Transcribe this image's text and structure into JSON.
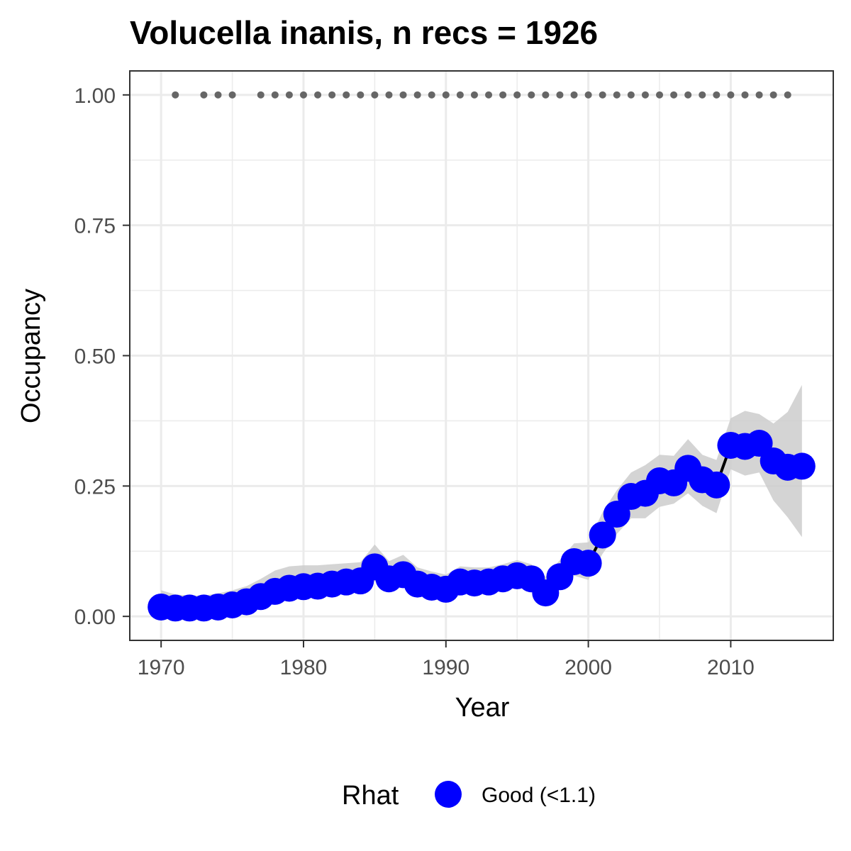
{
  "chart_data": {
    "type": "line",
    "title": "Volucella inanis, n recs = 1926",
    "xlabel": "Year",
    "ylabel": "Occupancy",
    "xlim": [
      1967.8,
      2017.2
    ],
    "ylim": [
      -0.046,
      1.046
    ],
    "x_ticks": [
      1970,
      1980,
      1990,
      2000,
      2010
    ],
    "x_tick_labels": [
      "1970",
      "1980",
      "1990",
      "2000",
      "2010"
    ],
    "y_ticks": [
      0,
      0.25,
      0.5,
      0.75,
      1
    ],
    "y_tick_labels": [
      "0.00",
      "0.25",
      "0.50",
      "0.75",
      "1.00"
    ],
    "grid": true,
    "legend": {
      "position": "bottom",
      "title": "Rhat",
      "entries": [
        {
          "label": "Good (<1.1)",
          "color": "#0000ff"
        }
      ]
    },
    "colors": {
      "points": "#0000ff",
      "line": "#000000",
      "ribbon": "#cccccc",
      "record_dots": "#666666"
    },
    "series": [
      {
        "x": [
          1970,
          1971,
          1972,
          1973,
          1974,
          1975,
          1976,
          1977,
          1978,
          1979,
          1980,
          1981,
          1982,
          1983,
          1984,
          1985,
          1986,
          1987,
          1988,
          1989,
          1990,
          1991,
          1992,
          1993,
          1994,
          1995,
          1996,
          1997,
          1998,
          1999,
          2000,
          2001,
          2002,
          2003,
          2004,
          2005,
          2006,
          2007,
          2008,
          2009,
          2010,
          2011,
          2012,
          2013,
          2014,
          2015
        ],
        "y": [
          0.018,
          0.016,
          0.016,
          0.016,
          0.018,
          0.022,
          0.028,
          0.038,
          0.048,
          0.054,
          0.057,
          0.058,
          0.062,
          0.066,
          0.068,
          0.095,
          0.072,
          0.08,
          0.062,
          0.056,
          0.052,
          0.066,
          0.064,
          0.066,
          0.072,
          0.078,
          0.072,
          0.045,
          0.076,
          0.105,
          0.102,
          0.156,
          0.196,
          0.23,
          0.236,
          0.26,
          0.256,
          0.284,
          0.262,
          0.252,
          0.328,
          0.326,
          0.332,
          0.298,
          0.286,
          0.288
        ],
        "lower": [
          0.005,
          0.004,
          0.004,
          0.004,
          0.005,
          0.008,
          0.012,
          0.02,
          0.028,
          0.034,
          0.036,
          0.038,
          0.04,
          0.044,
          0.046,
          0.068,
          0.05,
          0.058,
          0.042,
          0.036,
          0.034,
          0.046,
          0.044,
          0.046,
          0.05,
          0.056,
          0.05,
          0.028,
          0.052,
          0.078,
          0.07,
          0.12,
          0.158,
          0.188,
          0.188,
          0.21,
          0.216,
          0.236,
          0.212,
          0.198,
          0.282,
          0.27,
          0.276,
          0.222,
          0.19,
          0.152
        ],
        "upper": [
          0.05,
          0.042,
          0.04,
          0.04,
          0.044,
          0.05,
          0.058,
          0.072,
          0.088,
          0.096,
          0.098,
          0.098,
          0.1,
          0.102,
          0.104,
          0.138,
          0.106,
          0.118,
          0.094,
          0.086,
          0.08,
          0.096,
          0.094,
          0.094,
          0.1,
          0.108,
          0.1,
          0.076,
          0.108,
          0.14,
          0.142,
          0.2,
          0.242,
          0.276,
          0.29,
          0.31,
          0.308,
          0.34,
          0.31,
          0.3,
          0.38,
          0.394,
          0.388,
          0.37,
          0.392,
          0.444
        ]
      }
    ],
    "record_years": [
      1971,
      1973,
      1974,
      1975,
      1977,
      1978,
      1979,
      1980,
      1981,
      1982,
      1983,
      1984,
      1985,
      1986,
      1987,
      1988,
      1989,
      1990,
      1991,
      1992,
      1993,
      1994,
      1995,
      1996,
      1997,
      1998,
      1999,
      2000,
      2001,
      2002,
      2003,
      2004,
      2005,
      2006,
      2007,
      2008,
      2009,
      2010,
      2011,
      2012,
      2013,
      2014
    ],
    "record_level": 1.0
  }
}
